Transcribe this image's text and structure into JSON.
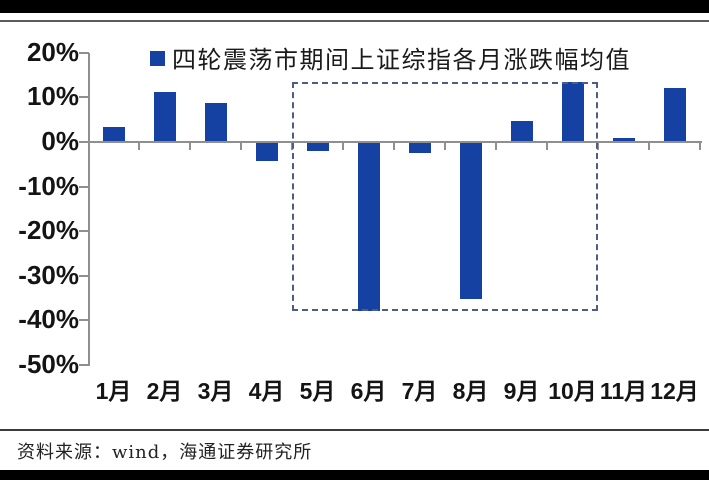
{
  "chart_data": {
    "type": "bar",
    "title": "四轮震荡市期间上证综指各月涨跌幅均值",
    "categories": [
      "1月",
      "2月",
      "3月",
      "4月",
      "5月",
      "6月",
      "7月",
      "8月",
      "9月",
      "10月",
      "11月",
      "12月"
    ],
    "values": [
      3.4,
      11.2,
      8.7,
      -4.2,
      -2.1,
      -38.0,
      -2.4,
      -35.2,
      4.7,
      13.4,
      0.8,
      12.1
    ],
    "unit": "%",
    "xlabel": "",
    "ylabel": "",
    "ylim": [
      -50,
      20
    ],
    "y_ticks": [
      {
        "value": 20,
        "label": "20%"
      },
      {
        "value": 10,
        "label": "10%"
      },
      {
        "value": 0,
        "label": "0%"
      },
      {
        "value": -10,
        "label": "-10%"
      },
      {
        "value": -20,
        "label": "-20%"
      },
      {
        "value": -30,
        "label": "-30%"
      },
      {
        "value": -40,
        "label": "-40%"
      },
      {
        "value": -50,
        "label": "-50%"
      }
    ],
    "grid": false,
    "legend_position": "top-center",
    "bar_color": "#1541a3",
    "axis_color": "#8f8f8f",
    "highlight_box": {
      "start_category": "5月",
      "end_category": "10月",
      "top_value": 13.4,
      "bottom_value": -38.0,
      "border_color": "#4d5e80",
      "style": "dashed"
    }
  },
  "footer": {
    "source_note": "资料来源：wind，海通证券研究所"
  }
}
